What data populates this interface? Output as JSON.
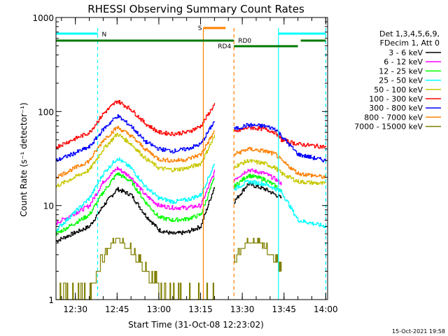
{
  "chart_data": {
    "type": "line",
    "title": "RHESSI Observing Summary Count Rates",
    "xlabel": "Start Time (31-Oct-08 12:23:02)",
    "ylabel": "Count Rate (s⁻¹ detector⁻¹)",
    "yscale": "log",
    "ylim": [
      1,
      1000
    ],
    "x_tick_labels": [
      "12:30",
      "12:45",
      "13:00",
      "13:15",
      "13:30",
      "13:45",
      "14:00"
    ],
    "y_tick_labels": [
      "1",
      "10",
      "100",
      "1000"
    ],
    "legend_header": [
      "Det 1,3,4,5,6,9,",
      "FDecim 1, Att 0"
    ],
    "legend_position": "right",
    "timestamp": "15-Oct-2021 19:58",
    "series": [
      {
        "name": "3 - 6 keV",
        "color": "#000000",
        "segments": [
          {
            "x": [
              "12:23",
              "12:35",
              "12:40",
              "12:45",
              "12:50",
              "12:55",
              "13:00",
              "13:05",
              "13:10",
              "13:15",
              "13:20"
            ],
            "y": [
              4.2,
              6,
              10,
              15,
              13,
              8,
              5.5,
              5,
              5.2,
              6,
              16
            ]
          },
          {
            "x": [
              "13:27",
              "13:32",
              "13:38",
              "13:42",
              "13:44"
            ],
            "y": [
              11,
              17,
              15,
              13,
              12
            ]
          }
        ]
      },
      {
        "name": "6 - 12 keV",
        "color": "#ff00ff",
        "segments": [
          {
            "x": [
              "12:23",
              "12:35",
              "12:40",
              "12:45",
              "12:50",
              "12:55",
              "13:00",
              "13:05",
              "13:10",
              "13:15",
              "13:20"
            ],
            "y": [
              6.5,
              10,
              18,
              25,
              20,
              13,
              10,
              9.5,
              9.5,
              10,
              23
            ]
          },
          {
            "x": [
              "13:27",
              "13:32",
              "13:38",
              "13:42",
              "13:44"
            ],
            "y": [
              19,
              24,
              22,
              19,
              17
            ]
          }
        ]
      },
      {
        "name": "12 - 25 keV",
        "color": "#00ff00",
        "segments": [
          {
            "x": [
              "12:23",
              "12:35",
              "12:40",
              "12:45",
              "12:50",
              "12:55",
              "13:00",
              "13:05",
              "13:10",
              "13:15",
              "13:20"
            ],
            "y": [
              5,
              8,
              14,
              22,
              18,
              11,
              7.5,
              7,
              7.2,
              8,
              20
            ]
          },
          {
            "x": [
              "13:27",
              "13:32",
              "13:38",
              "13:42",
              "13:44"
            ],
            "y": [
              16,
              21,
              19,
              16,
              14
            ]
          }
        ]
      },
      {
        "name": "25 - 50 keV",
        "color": "#00ffff",
        "segments": [
          {
            "x": [
              "12:23",
              "12:35",
              "12:40",
              "12:45",
              "12:50",
              "12:55",
              "13:00",
              "13:05",
              "13:10",
              "13:15",
              "13:20"
            ],
            "y": [
              5.5,
              12,
              22,
              32,
              25,
              16,
              12,
              11,
              11.5,
              13,
              28
            ]
          },
          {
            "x": [
              "13:27",
              "13:32",
              "13:38",
              "13:42",
              "13:44",
              "13:50",
              "14:00"
            ],
            "y": [
              15,
              18,
              17,
              15,
              14,
              7,
              6
            ]
          }
        ]
      },
      {
        "name": "50 - 100 keV",
        "color": "#c8c800",
        "segments": [
          {
            "x": [
              "12:23",
              "12:35",
              "12:40",
              "12:45",
              "12:50",
              "12:55",
              "13:00",
              "13:05",
              "13:10",
              "13:15",
              "13:20"
            ],
            "y": [
              16,
              24,
              40,
              58,
              45,
              32,
              25,
              24,
              25,
              28,
              55
            ]
          },
          {
            "x": [
              "13:27",
              "13:32",
              "13:38",
              "13:42",
              "13:44",
              "13:50",
              "14:00"
            ],
            "y": [
              26,
              30,
              28,
              25,
              22,
              18,
              17
            ]
          }
        ]
      },
      {
        "name": "100 - 300 keV",
        "color": "#ff0000",
        "segments": [
          {
            "x": [
              "12:23",
              "12:35",
              "12:40",
              "12:45",
              "12:50",
              "12:55",
              "13:00",
              "13:05",
              "13:10",
              "13:15",
              "13:20"
            ],
            "y": [
              42,
              60,
              95,
              130,
              105,
              75,
              60,
              58,
              60,
              70,
              120
            ]
          },
          {
            "x": [
              "13:27",
              "13:32",
              "13:38",
              "13:42",
              "13:44",
              "13:50",
              "14:00"
            ],
            "y": [
              60,
              68,
              65,
              60,
              50,
              45,
              42
            ]
          }
        ]
      },
      {
        "name": "300 - 800 keV",
        "color": "#0000ff",
        "segments": [
          {
            "x": [
              "12:23",
              "12:35",
              "12:40",
              "12:45",
              "12:50",
              "12:55",
              "13:00",
              "13:05",
              "13:10",
              "13:15",
              "13:20"
            ],
            "y": [
              30,
              42,
              65,
              90,
              70,
              48,
              40,
              38,
              40,
              45,
              80
            ]
          },
          {
            "x": [
              "13:27",
              "13:32",
              "13:38",
              "13:42",
              "13:44",
              "13:50",
              "14:00"
            ],
            "y": [
              65,
              72,
              70,
              65,
              55,
              35,
              30
            ]
          }
        ]
      },
      {
        "name": "800 - 7000 keV",
        "color": "#ff8000",
        "segments": [
          {
            "x": [
              "12:23",
              "12:35",
              "12:40",
              "12:45",
              "12:50",
              "12:55",
              "13:00",
              "13:05",
              "13:10",
              "13:15",
              "13:20"
            ],
            "y": [
              20,
              30,
              50,
              68,
              55,
              40,
              31,
              30,
              31,
              35,
              62
            ]
          },
          {
            "x": [
              "13:27",
              "13:32",
              "13:38",
              "13:42",
              "13:44",
              "13:50",
              "14:00"
            ],
            "y": [
              35,
              40,
              38,
              35,
              30,
              22,
              20
            ]
          }
        ]
      },
      {
        "name": "7000 - 15000 keV",
        "color": "#808000",
        "segments": [
          {
            "x": [
              "12:23",
              "12:30",
              "12:35",
              "12:38",
              "12:42",
              "12:45",
              "12:50",
              "12:55",
              "13:00",
              "13:05",
              "13:10",
              "13:15",
              "13:20"
            ],
            "y": [
              1,
              1,
              1,
              2,
              3.5,
              4.5,
              3.2,
              2,
              1.2,
              1,
              1,
              1,
              1.1
            ]
          },
          {
            "x": [
              "13:27",
              "13:30",
              "13:33",
              "13:37",
              "13:40",
              "13:44"
            ],
            "y": [
              2.5,
              3.5,
              4.2,
              3.8,
              3,
              2
            ]
          }
        ]
      }
    ],
    "annotations": {
      "top_bars": [
        {
          "label": "N",
          "color": "#00ffff",
          "segments": [
            [
              "12:23",
              "12:38"
            ],
            [
              "13:43",
              "14:00"
            ]
          ]
        },
        {
          "label": "S",
          "color": "#ff8000",
          "segments": [
            [
              "13:16",
              "13:24"
            ]
          ]
        },
        {
          "label": "RD0",
          "color": "#007800",
          "segments": [
            [
              "12:23",
              "13:27"
            ],
            [
              "13:51",
              "14:00"
            ]
          ]
        },
        {
          "label": "RD4",
          "color": "#007800",
          "segments": [
            [
              "13:27",
              "13:50"
            ]
          ]
        }
      ],
      "vertical_lines": [
        {
          "x": "12:38",
          "color": "#00ffff",
          "style": "dashed"
        },
        {
          "x": "13:16",
          "color": "#ff8000",
          "style": "solid"
        },
        {
          "x": "13:27",
          "color": "#ff8000",
          "style": "dashed"
        },
        {
          "x": "13:43",
          "color": "#00ffff",
          "style": "solid"
        },
        {
          "x": "14:00",
          "color": "#00ffff",
          "style": "dashed"
        }
      ]
    },
    "grid": false
  }
}
